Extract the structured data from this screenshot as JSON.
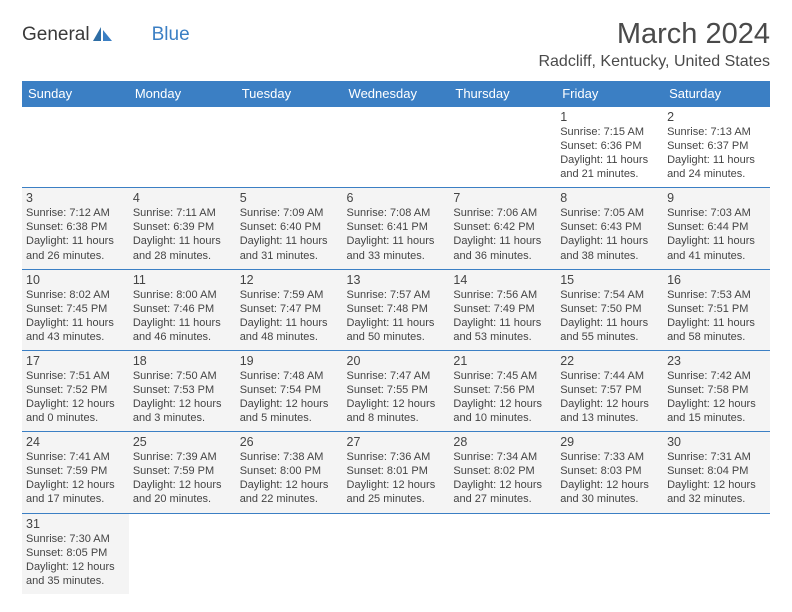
{
  "logo": {
    "general": "General",
    "blue": "Blue"
  },
  "title": "March 2024",
  "location": "Radcliff, Kentucky, United States",
  "colors": {
    "header_bg": "#3b7fc4",
    "header_text": "#ffffff",
    "cell_bg": "#f4f4f4",
    "border": "#3b7fc4",
    "text": "#444444"
  },
  "day_headers": [
    "Sunday",
    "Monday",
    "Tuesday",
    "Wednesday",
    "Thursday",
    "Friday",
    "Saturday"
  ],
  "weeks": [
    [
      null,
      null,
      null,
      null,
      null,
      {
        "d": "1",
        "sr": "7:15 AM",
        "ss": "6:36 PM",
        "dl": "11 hours and 21 minutes."
      },
      {
        "d": "2",
        "sr": "7:13 AM",
        "ss": "6:37 PM",
        "dl": "11 hours and 24 minutes."
      }
    ],
    [
      {
        "d": "3",
        "sr": "7:12 AM",
        "ss": "6:38 PM",
        "dl": "11 hours and 26 minutes."
      },
      {
        "d": "4",
        "sr": "7:11 AM",
        "ss": "6:39 PM",
        "dl": "11 hours and 28 minutes."
      },
      {
        "d": "5",
        "sr": "7:09 AM",
        "ss": "6:40 PM",
        "dl": "11 hours and 31 minutes."
      },
      {
        "d": "6",
        "sr": "7:08 AM",
        "ss": "6:41 PM",
        "dl": "11 hours and 33 minutes."
      },
      {
        "d": "7",
        "sr": "7:06 AM",
        "ss": "6:42 PM",
        "dl": "11 hours and 36 minutes."
      },
      {
        "d": "8",
        "sr": "7:05 AM",
        "ss": "6:43 PM",
        "dl": "11 hours and 38 minutes."
      },
      {
        "d": "9",
        "sr": "7:03 AM",
        "ss": "6:44 PM",
        "dl": "11 hours and 41 minutes."
      }
    ],
    [
      {
        "d": "10",
        "sr": "8:02 AM",
        "ss": "7:45 PM",
        "dl": "11 hours and 43 minutes."
      },
      {
        "d": "11",
        "sr": "8:00 AM",
        "ss": "7:46 PM",
        "dl": "11 hours and 46 minutes."
      },
      {
        "d": "12",
        "sr": "7:59 AM",
        "ss": "7:47 PM",
        "dl": "11 hours and 48 minutes."
      },
      {
        "d": "13",
        "sr": "7:57 AM",
        "ss": "7:48 PM",
        "dl": "11 hours and 50 minutes."
      },
      {
        "d": "14",
        "sr": "7:56 AM",
        "ss": "7:49 PM",
        "dl": "11 hours and 53 minutes."
      },
      {
        "d": "15",
        "sr": "7:54 AM",
        "ss": "7:50 PM",
        "dl": "11 hours and 55 minutes."
      },
      {
        "d": "16",
        "sr": "7:53 AM",
        "ss": "7:51 PM",
        "dl": "11 hours and 58 minutes."
      }
    ],
    [
      {
        "d": "17",
        "sr": "7:51 AM",
        "ss": "7:52 PM",
        "dl": "12 hours and 0 minutes."
      },
      {
        "d": "18",
        "sr": "7:50 AM",
        "ss": "7:53 PM",
        "dl": "12 hours and 3 minutes."
      },
      {
        "d": "19",
        "sr": "7:48 AM",
        "ss": "7:54 PM",
        "dl": "12 hours and 5 minutes."
      },
      {
        "d": "20",
        "sr": "7:47 AM",
        "ss": "7:55 PM",
        "dl": "12 hours and 8 minutes."
      },
      {
        "d": "21",
        "sr": "7:45 AM",
        "ss": "7:56 PM",
        "dl": "12 hours and 10 minutes."
      },
      {
        "d": "22",
        "sr": "7:44 AM",
        "ss": "7:57 PM",
        "dl": "12 hours and 13 minutes."
      },
      {
        "d": "23",
        "sr": "7:42 AM",
        "ss": "7:58 PM",
        "dl": "12 hours and 15 minutes."
      }
    ],
    [
      {
        "d": "24",
        "sr": "7:41 AM",
        "ss": "7:59 PM",
        "dl": "12 hours and 17 minutes."
      },
      {
        "d": "25",
        "sr": "7:39 AM",
        "ss": "7:59 PM",
        "dl": "12 hours and 20 minutes."
      },
      {
        "d": "26",
        "sr": "7:38 AM",
        "ss": "8:00 PM",
        "dl": "12 hours and 22 minutes."
      },
      {
        "d": "27",
        "sr": "7:36 AM",
        "ss": "8:01 PM",
        "dl": "12 hours and 25 minutes."
      },
      {
        "d": "28",
        "sr": "7:34 AM",
        "ss": "8:02 PM",
        "dl": "12 hours and 27 minutes."
      },
      {
        "d": "29",
        "sr": "7:33 AM",
        "ss": "8:03 PM",
        "dl": "12 hours and 30 minutes."
      },
      {
        "d": "30",
        "sr": "7:31 AM",
        "ss": "8:04 PM",
        "dl": "12 hours and 32 minutes."
      }
    ],
    [
      {
        "d": "31",
        "sr": "7:30 AM",
        "ss": "8:05 PM",
        "dl": "12 hours and 35 minutes."
      },
      null,
      null,
      null,
      null,
      null,
      null
    ]
  ],
  "labels": {
    "sunrise": "Sunrise: ",
    "sunset": "Sunset: ",
    "daylight": "Daylight: "
  }
}
